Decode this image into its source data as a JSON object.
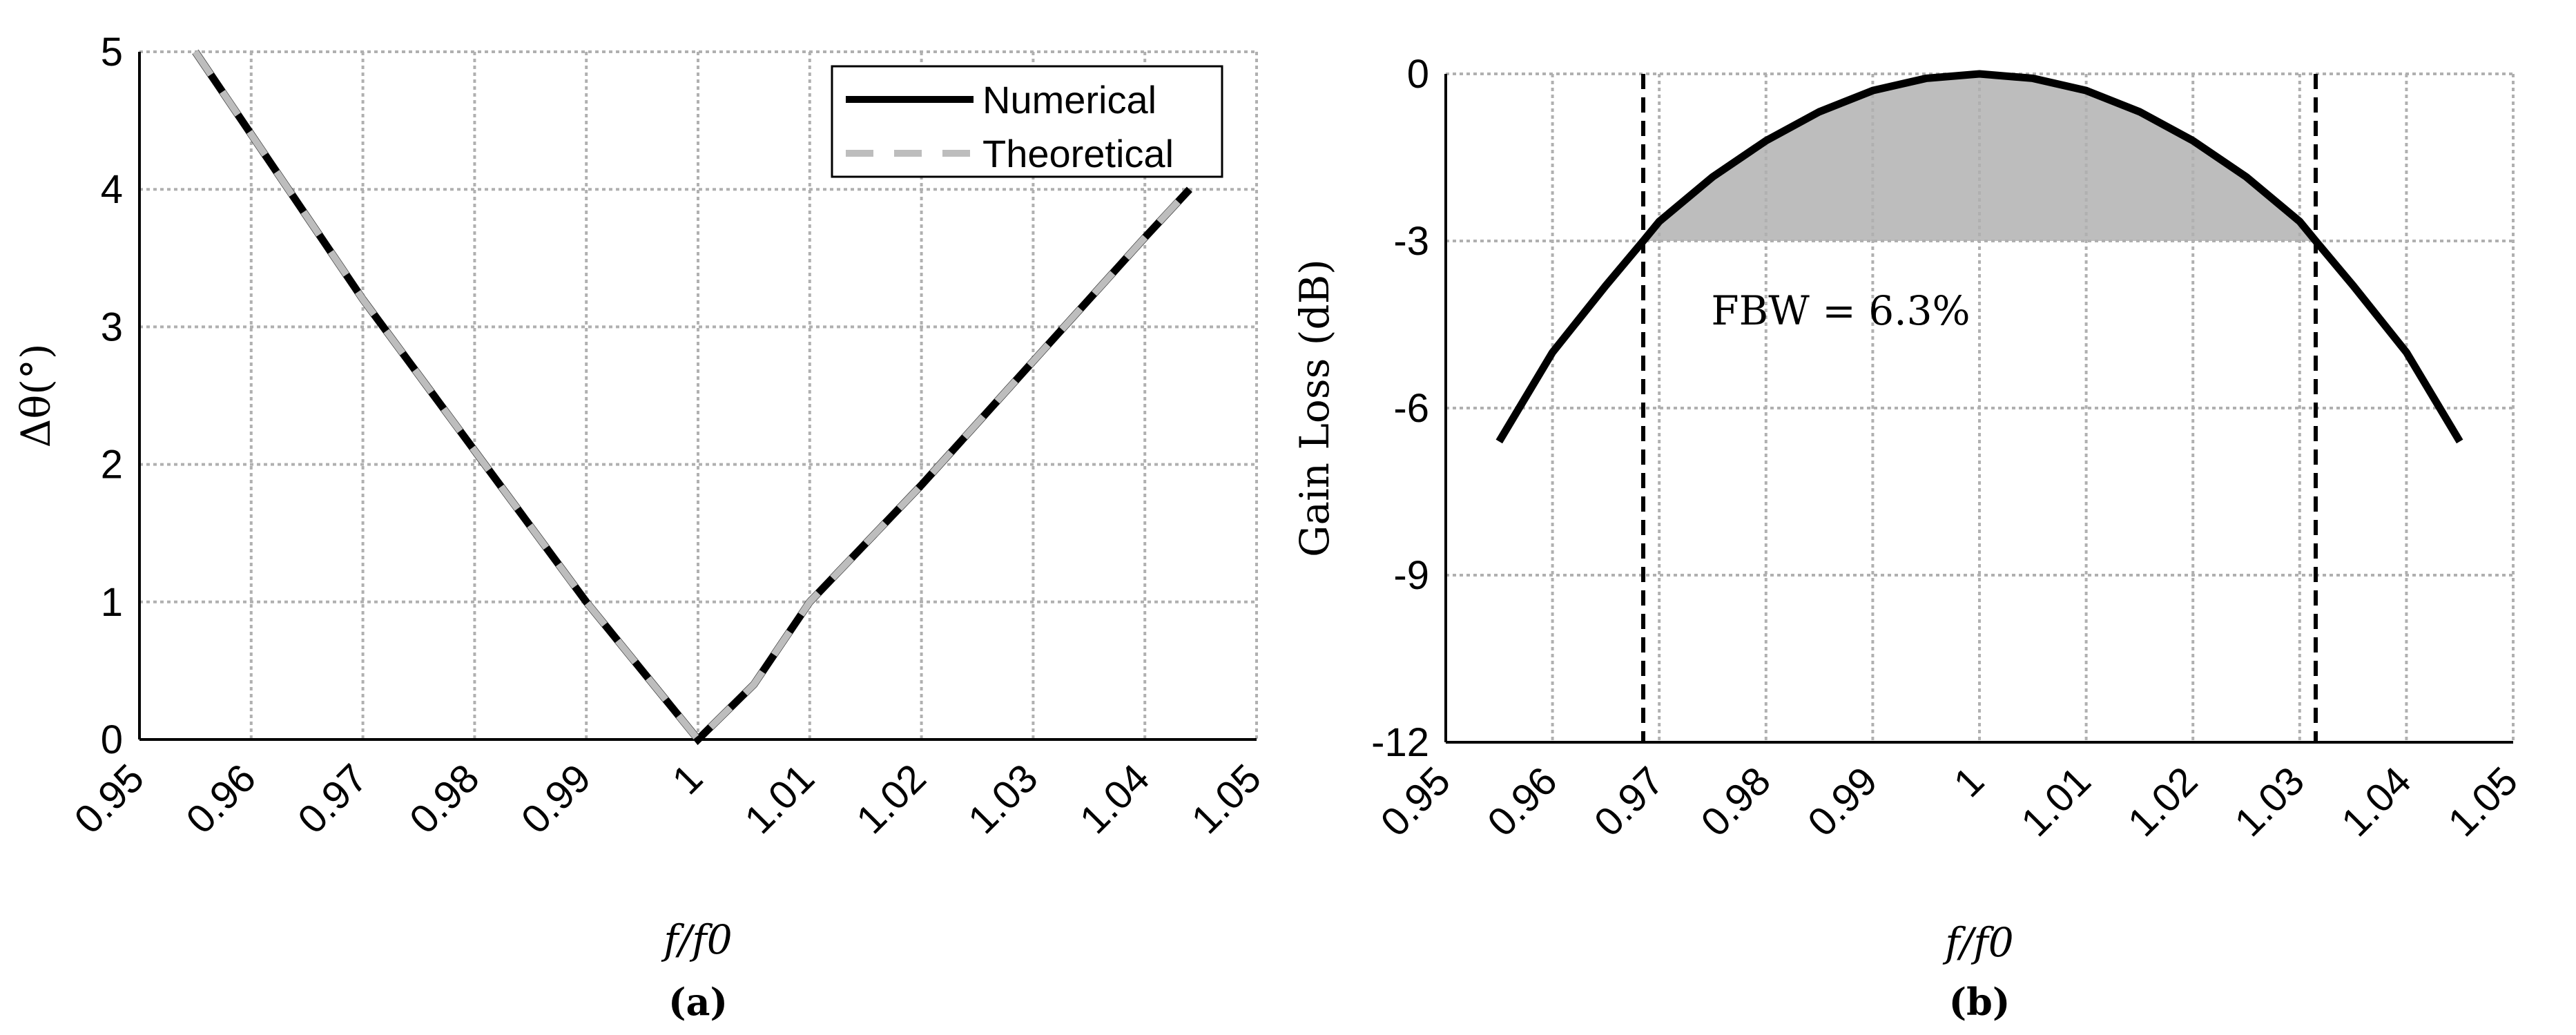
{
  "chart_data": [
    {
      "type": "line",
      "caption": "(a)",
      "xlabel": "f/f0",
      "ylabel": "Δθ(°)",
      "xlim": [
        0.95,
        1.05
      ],
      "ylim": [
        0,
        5
      ],
      "xticks": [
        "0.95",
        "0.96",
        "0.97",
        "0.98",
        "0.99",
        "1",
        "1.01",
        "1.02",
        "1.03",
        "1.04",
        "1.05"
      ],
      "yticks": [
        "0",
        "1",
        "2",
        "3",
        "4",
        "5"
      ],
      "grid": true,
      "legend_position": "top-right",
      "series": [
        {
          "name": "Numerical",
          "color": "#000000",
          "style": "solid",
          "x": [
            0.955,
            0.96,
            0.97,
            0.98,
            0.99,
            0.995,
            1.0,
            1.005,
            1.01,
            1.02,
            1.03,
            1.04,
            1.044
          ],
          "y": [
            5.0,
            4.4,
            3.2,
            2.1,
            1.0,
            0.5,
            0.0,
            0.4,
            1.0,
            1.85,
            2.75,
            3.65,
            4.0
          ]
        },
        {
          "name": "Theoretical",
          "color": "#bdbdbd",
          "style": "dashed",
          "x": [
            0.955,
            0.96,
            0.97,
            0.98,
            0.99,
            0.995,
            1.0,
            1.005,
            1.01,
            1.02,
            1.03,
            1.04,
            1.044
          ],
          "y": [
            5.0,
            4.4,
            3.2,
            2.1,
            1.0,
            0.5,
            0.0,
            0.4,
            1.0,
            1.85,
            2.75,
            3.65,
            4.0
          ]
        }
      ]
    },
    {
      "type": "line",
      "caption": "(b)",
      "xlabel": "f/f0",
      "ylabel": "Gain Loss (dB)",
      "xlim": [
        0.95,
        1.05
      ],
      "ylim": [
        -12,
        0
      ],
      "xticks": [
        "0.95",
        "0.96",
        "0.97",
        "0.98",
        "0.99",
        "1",
        "1.01",
        "1.02",
        "1.03",
        "1.04",
        "1.05"
      ],
      "yticks": [
        "-12",
        "-9",
        "-6",
        "-3",
        "0"
      ],
      "grid": true,
      "annotation": "FBW = 6.3%",
      "fill_color": "#bdbdbd",
      "fill_above": -3,
      "vlines": [
        0.9685,
        1.0315
      ],
      "series": [
        {
          "color": "#000000",
          "style": "solid",
          "x": [
            0.955,
            0.96,
            0.965,
            0.9685,
            0.97,
            0.975,
            0.98,
            0.985,
            0.99,
            0.995,
            1.0,
            1.005,
            1.01,
            1.015,
            1.02,
            1.025,
            1.03,
            1.0315,
            1.035,
            1.04,
            1.045
          ],
          "y": [
            -6.6,
            -5.0,
            -3.8,
            -3.0,
            -2.65,
            -1.85,
            -1.2,
            -0.68,
            -0.3,
            -0.08,
            0.0,
            -0.08,
            -0.3,
            -0.68,
            -1.2,
            -1.85,
            -2.65,
            -3.0,
            -3.8,
            -5.0,
            -6.6
          ]
        }
      ]
    }
  ]
}
